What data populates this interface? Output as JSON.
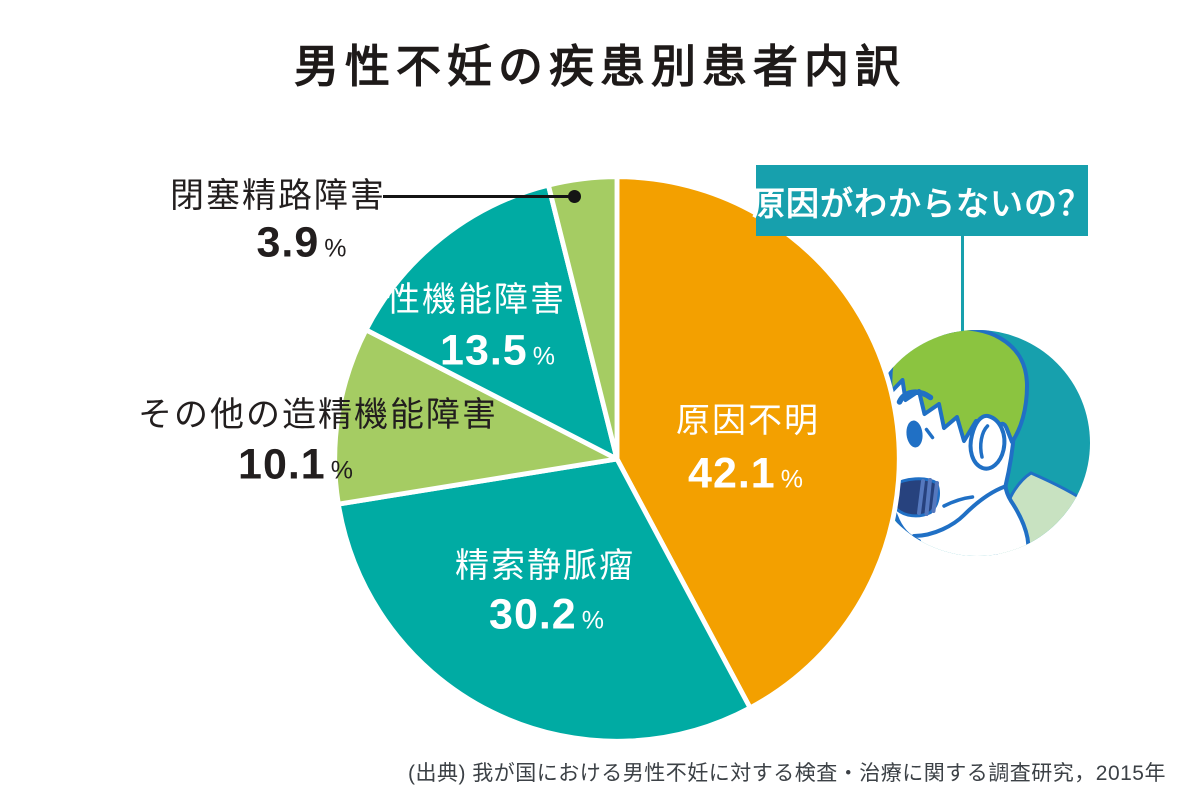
{
  "title": "男性不妊の疾患別患者内訳",
  "source": "(出典) 我が国における男性不妊に対する検査・治療に関する調査研究，2015年",
  "speech_bubble": {
    "text": "原因がわからないの？"
  },
  "chart_data": {
    "type": "pie",
    "title": "男性不妊の疾患別患者内訳",
    "unit": "%",
    "start_angle_deg": 0,
    "direction": "clockwise",
    "slices": [
      {
        "label": "原因不明",
        "value": 42.1,
        "color": "#F3A000",
        "text_color": "#ffffff"
      },
      {
        "label": "精索静脈瘤",
        "value": 30.2,
        "color": "#00ABA3",
        "text_color": "#ffffff"
      },
      {
        "label": "その他の造精機能障害",
        "value": 10.1,
        "color": "#A5CC63",
        "text_color": "#221e1e"
      },
      {
        "label": "性機能障害",
        "value": 13.5,
        "color": "#00ABA3",
        "text_color": "#ffffff"
      },
      {
        "label": "閉塞精路障害",
        "value": 3.9,
        "color": "#A5CC63",
        "text_color": "#221e1e"
      }
    ]
  },
  "colors": {
    "orange": "#F3A000",
    "teal": "#00ABA3",
    "light_green": "#A5CC63",
    "bubble_teal": "#17A0AD",
    "title_text": "#1E1A19",
    "label_dark": "#221E1E",
    "source_text": "#3C4146",
    "illustration": {
      "bg": "#17A0AD",
      "hair": "#8BC440",
      "outline": "#2070C5",
      "skin": "#FFFFFF",
      "shirt": "#C8E2C1",
      "mouth": "#27427E",
      "mouth_hatch": "#5578BE"
    }
  }
}
